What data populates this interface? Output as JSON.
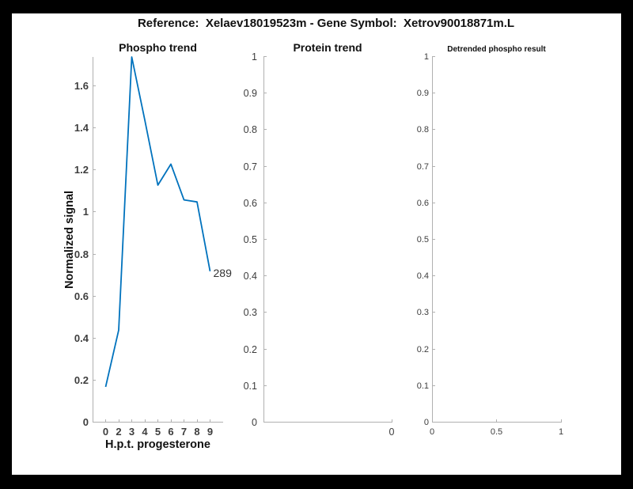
{
  "figure_title": "Reference:  Xelaev18019523m - Gene Symbol:  Xetrov90018871m.L",
  "colors": {
    "window_bg": "#000000",
    "figure_bg": "#ffffff",
    "line": "#0072bd",
    "axis": "#b0b0b0",
    "tick_label": "#3d3d3d",
    "text": "#111111"
  },
  "chart_data": [
    {
      "type": "line",
      "title": "Phospho trend",
      "xlabel": "H.p.t. progesterone",
      "ylabel": "Normalized signal",
      "line_color": "#0072bd",
      "x": [
        0,
        2,
        3,
        4,
        5,
        6,
        7,
        8,
        9
      ],
      "x_tick_labels": [
        "0",
        "2",
        "3",
        "4",
        "5",
        "6",
        "7",
        "8",
        "9"
      ],
      "x_plot_positions": [
        1,
        2,
        3,
        4,
        5,
        6,
        7,
        8,
        9
      ],
      "xlim": [
        0,
        10
      ],
      "values": [
        0.17,
        0.44,
        1.74,
        1.44,
        1.13,
        1.23,
        1.06,
        1.05,
        0.72
      ],
      "ylim": [
        0,
        1.74
      ],
      "y_ticks": [
        "0",
        "0.2",
        "0.4",
        "0.6",
        "0.8",
        "1",
        "1.2",
        "1.4",
        "1.6"
      ],
      "end_label": "289",
      "grid": false,
      "legend": null
    },
    {
      "type": "line",
      "title": "Protein trend",
      "xlabel": "",
      "ylabel": "",
      "values": [],
      "ylim": [
        0,
        1
      ],
      "y_ticks": [
        "0",
        "0.1",
        "0.2",
        "0.3",
        "0.4",
        "0.5",
        "0.6",
        "0.7",
        "0.8",
        "0.9",
        "1"
      ],
      "x_ticks": [
        {
          "label": "0",
          "frac": 1
        }
      ],
      "grid": false,
      "legend": null
    },
    {
      "type": "line",
      "title": "Detrended phospho result",
      "xlabel": "",
      "ylabel": "",
      "values": [],
      "ylim": [
        0,
        1
      ],
      "y_ticks": [
        "0",
        "0.1",
        "0.2",
        "0.3",
        "0.4",
        "0.5",
        "0.6",
        "0.7",
        "0.8",
        "0.9",
        "1"
      ],
      "x_ticks": [
        {
          "label": "0",
          "frac": 0
        },
        {
          "label": "0.5",
          "frac": 0.5
        },
        {
          "label": "1",
          "frac": 1
        }
      ],
      "grid": false,
      "legend": null
    }
  ]
}
